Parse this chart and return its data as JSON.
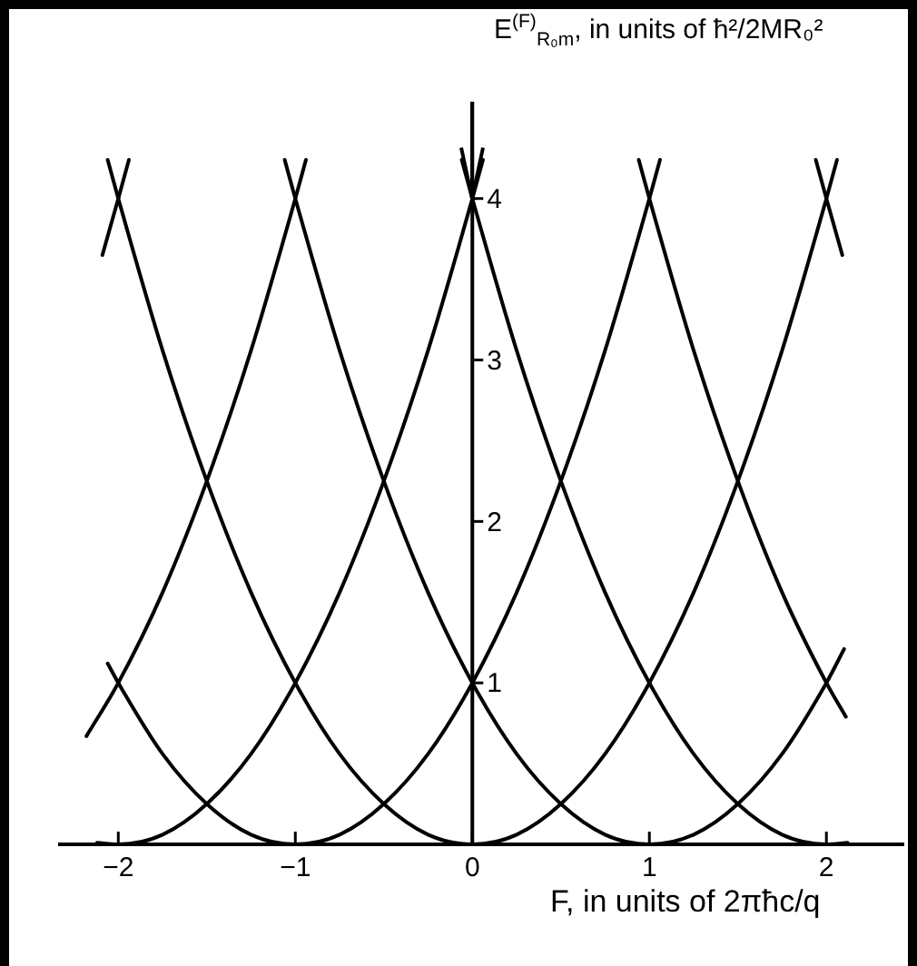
{
  "chart_data": {
    "type": "line",
    "xlabel": "F, in units of 2πħc/q",
    "ylabel": "E$^{(F)}$$_{R₀m}$, in units of ħ²/2MR₀²",
    "xlim": [
      -2.34,
      2.44
    ],
    "ylim": [
      0,
      4.6
    ],
    "xticks": [
      -2,
      -1,
      0,
      1,
      2
    ],
    "yticks": [
      1,
      2,
      3,
      4
    ],
    "marker": "none",
    "line_style": "solid",
    "series": [
      {
        "color": "#000000",
        "x": [
          -2.09,
          -2,
          -1.94
        ],
        "values": [
          3.65,
          4,
          4.24
        ]
      },
      {
        "color": "#000000",
        "x": [
          -2.18,
          -2,
          -1.75,
          -1.5,
          -1.25,
          -1,
          -0.94
        ],
        "values": [
          0.67,
          1,
          1.56,
          2.25,
          3.06,
          4,
          4.24
        ]
      },
      {
        "color": "#000000",
        "x": [
          -2.12,
          -2,
          -1.75,
          -1.5,
          -1.25,
          -1,
          -0.75,
          -0.5,
          -0.25,
          0,
          0.06
        ],
        "values": [
          0.01,
          0,
          0.06,
          0.25,
          0.56,
          1,
          1.56,
          2.25,
          3.06,
          4,
          4.24
        ]
      },
      {
        "color": "#000000",
        "x": [
          -2.06,
          -2,
          -1.75,
          -1.5,
          -1.25,
          -1,
          -0.75,
          -0.5,
          -0.25,
          0,
          0.25,
          0.5,
          0.75,
          1,
          1.06
        ],
        "values": [
          1.12,
          1,
          0.56,
          0.25,
          0.06,
          0,
          0.06,
          0.25,
          0.56,
          1,
          1.56,
          2.25,
          3.06,
          4,
          4.24
        ]
      },
      {
        "color": "#000000",
        "x": [
          -2.06,
          -2,
          -1.75,
          -1.5,
          -1.25,
          -1,
          -0.75,
          -0.5,
          -0.25,
          0,
          0.25,
          0.5,
          0.75,
          1,
          1.25,
          1.5,
          1.75,
          2,
          2.06
        ],
        "values": [
          4.24,
          4,
          3.06,
          2.25,
          1.56,
          1,
          0.56,
          0.25,
          0.06,
          0,
          0.06,
          0.25,
          0.56,
          1,
          1.56,
          2.25,
          3.06,
          4,
          4.24
        ]
      },
      {
        "color": "#000000",
        "x": [
          -1.06,
          -1,
          -0.75,
          -0.5,
          -0.25,
          0,
          0.25,
          0.5,
          0.75,
          1,
          1.25,
          1.5,
          1.75,
          2,
          2.1
        ],
        "values": [
          4.24,
          4,
          3.06,
          2.25,
          1.56,
          1,
          0.56,
          0.25,
          0.06,
          0,
          0.06,
          0.25,
          0.56,
          1,
          1.21
        ]
      },
      {
        "color": "#000000",
        "x": [
          -0.06,
          0,
          0.25,
          0.5,
          0.75,
          1,
          1.25,
          1.5,
          1.75,
          2,
          2.12
        ],
        "values": [
          4.24,
          4,
          3.06,
          2.25,
          1.56,
          1,
          0.56,
          0.25,
          0.06,
          0,
          0.01
        ]
      },
      {
        "color": "#000000",
        "x": [
          0.94,
          1,
          1.25,
          1.5,
          1.75,
          2,
          2.11
        ],
        "values": [
          4.24,
          4,
          3.06,
          2.25,
          1.56,
          1,
          0.79
        ]
      },
      {
        "color": "#000000",
        "x": [
          1.94,
          2,
          2.09
        ],
        "values": [
          4.24,
          4,
          3.65
        ]
      }
    ]
  }
}
